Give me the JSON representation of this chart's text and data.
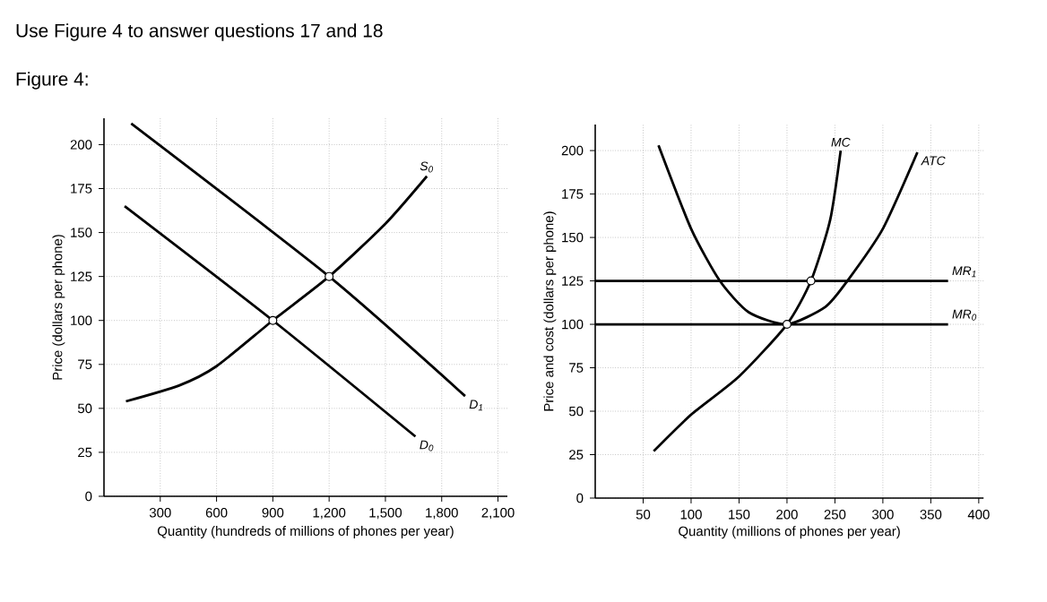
{
  "chart_data": [
    {
      "type": "line",
      "title": "Use Figure 4 to answer questions 17 and 18",
      "subtitle": "Figure 4:",
      "xlabel": "Quantity (hundreds of millions of phones per year)",
      "ylabel": "Price (dollars per phone)",
      "xlim": [
        0,
        2150
      ],
      "ylim": [
        0,
        215
      ],
      "xticks": [
        300,
        600,
        900,
        {
          "value": 1200,
          "label": "1,200"
        },
        {
          "value": 1500,
          "label": "1,500"
        },
        {
          "value": 1800,
          "label": "1,800"
        },
        {
          "value": 2100,
          "label": "2,100"
        }
      ],
      "yticks": [
        0,
        25,
        50,
        75,
        100,
        125,
        150,
        175,
        200
      ],
      "grid": true,
      "series": [
        {
          "name": "S$_{0}$",
          "color": "#000000",
          "x": [
            117,
            400,
            600,
            900,
            1200,
            1500,
            1721
          ],
          "values": [
            54,
            63,
            74,
            100,
            125,
            155,
            182
          ]
        },
        {
          "name": "D$_{1}$",
          "color": "#000000",
          "x": [
            145,
            1200,
            1925
          ],
          "values": [
            212,
            125,
            57
          ]
        },
        {
          "name": "D$_{0}$",
          "color": "#000000",
          "x": [
            110,
            900,
            1660
          ],
          "values": [
            165,
            100,
            34
          ]
        },
        {
          "type": "scatter",
          "marker": "circle",
          "color": "#000000",
          "x": [
            900,
            1200
          ],
          "values": [
            100,
            125
          ]
        }
      ]
    },
    {
      "type": "line",
      "xlabel": "Quantity (millions of phones per year)",
      "ylabel": "Price and cost (dollars per phone)",
      "xlim": [
        0,
        405
      ],
      "ylim": [
        0,
        215
      ],
      "xticks": [
        50,
        100,
        150,
        200,
        250,
        300,
        350,
        400
      ],
      "yticks": [
        0,
        25,
        50,
        75,
        100,
        125,
        150,
        175,
        200
      ],
      "grid": true,
      "series": [
        {
          "name": "MC",
          "color": "#000000",
          "x": [
            61,
            100,
            150,
            200,
            225,
            245,
            256
          ],
          "values": [
            27,
            48,
            70,
            100,
            125,
            160,
            200
          ]
        },
        {
          "name": "ATC",
          "color": "#000000",
          "x": [
            66,
            100,
            130,
            160,
            200,
            240,
            263,
            300,
            336
          ],
          "values": [
            203,
            155,
            125,
            107,
            100,
            110,
            125,
            155,
            199
          ]
        },
        {
          "name": "MR$_{1}$",
          "color": "#000000",
          "x": [
            0,
            368
          ],
          "values": [
            125,
            125
          ]
        },
        {
          "name": "MR$_{0}$",
          "color": "#000000",
          "x": [
            0,
            368
          ],
          "values": [
            100,
            100
          ]
        },
        {
          "type": "scatter",
          "marker": "circle",
          "color": "#000000",
          "x": [
            200,
            225
          ],
          "values": [
            100,
            125
          ]
        }
      ]
    }
  ]
}
